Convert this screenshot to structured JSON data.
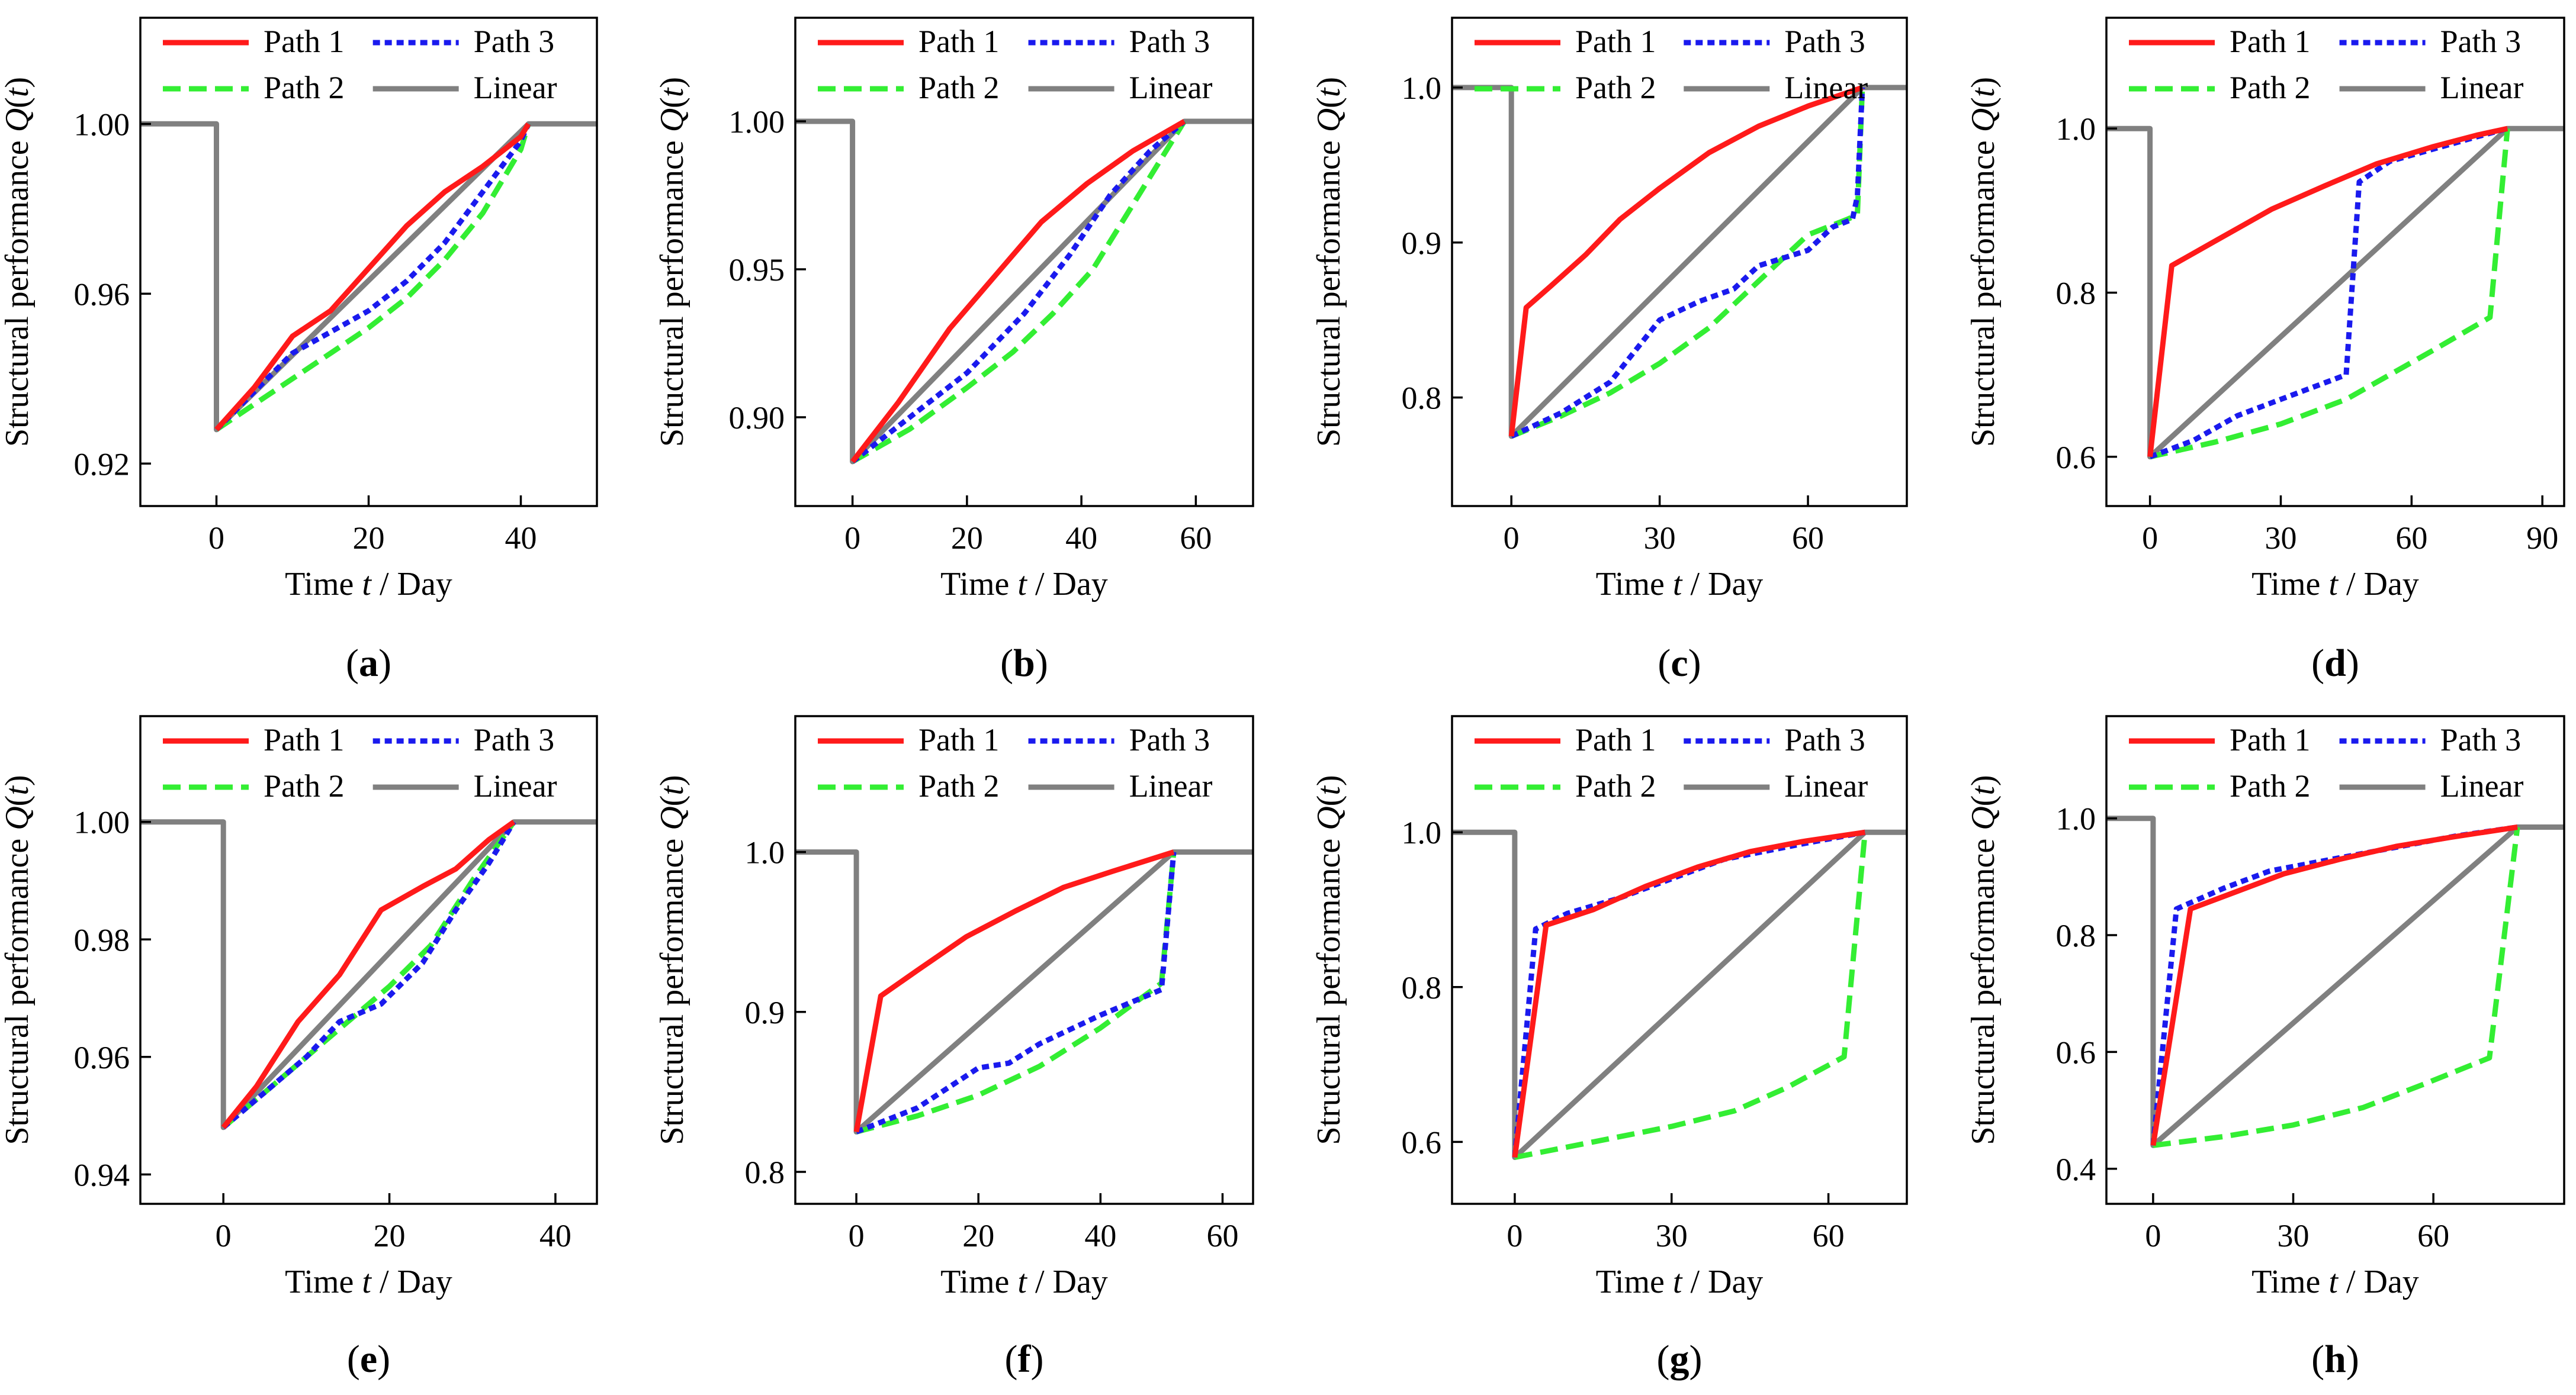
{
  "figure": {
    "panel_labels": [
      "a",
      "b",
      "c",
      "d",
      "e",
      "f",
      "g",
      "h"
    ]
  },
  "colors": {
    "path1": "#ff1a1a",
    "path2": "#33ee33",
    "path3": "#1a1aee",
    "linear": "#808080"
  },
  "chart_data": [
    {
      "type": "line",
      "panel": "a",
      "xlabel": "Time t / Day",
      "ylabel": "Structural performance Q(t)",
      "xlim": [
        -10,
        50
      ],
      "ylim": [
        0.91,
        1.025
      ],
      "xticks": [
        0,
        20,
        40
      ],
      "xticklabels": [
        "0",
        "20",
        "40"
      ],
      "yticks": [
        0.92,
        0.96,
        1.0
      ],
      "yticklabels": [
        "0.92",
        "0.96",
        "1.00"
      ],
      "legend": [
        "Path 1",
        "Path 2",
        "Path 3",
        "Linear"
      ],
      "series": [
        {
          "name": "Path 1",
          "x": [
            0,
            5,
            10,
            15,
            20,
            25,
            30,
            35,
            40,
            41
          ],
          "y": [
            0.928,
            0.938,
            0.95,
            0.956,
            0.966,
            0.976,
            0.984,
            0.99,
            0.997,
            1.0
          ]
        },
        {
          "name": "Path 2",
          "x": [
            0,
            5,
            10,
            15,
            20,
            25,
            30,
            35,
            40,
            41
          ],
          "y": [
            0.928,
            0.934,
            0.94,
            0.946,
            0.952,
            0.959,
            0.968,
            0.979,
            0.994,
            1.0
          ]
        },
        {
          "name": "Path 3",
          "x": [
            0,
            5,
            10,
            15,
            20,
            25,
            30,
            35,
            40,
            41
          ],
          "y": [
            0.928,
            0.937,
            0.946,
            0.951,
            0.956,
            0.963,
            0.972,
            0.984,
            0.996,
            1.0
          ]
        },
        {
          "name": "Linear",
          "x": [
            -10,
            0,
            0,
            41,
            50
          ],
          "y": [
            1.0,
            1.0,
            0.928,
            1.0,
            1.0
          ]
        }
      ]
    },
    {
      "type": "line",
      "panel": "b",
      "xlabel": "Time t / Day",
      "ylabel": "Structural performance Q(t)",
      "xlim": [
        -10,
        70
      ],
      "ylim": [
        0.87,
        1.035
      ],
      "xticks": [
        0,
        20,
        40,
        60
      ],
      "xticklabels": [
        "0",
        "20",
        "40",
        "60"
      ],
      "yticks": [
        0.9,
        0.95,
        1.0
      ],
      "yticklabels": [
        "0.90",
        "0.95",
        "1.00"
      ],
      "legend": [
        "Path 1",
        "Path 2",
        "Path 3",
        "Linear"
      ],
      "series": [
        {
          "name": "Path 1",
          "x": [
            0,
            8,
            17,
            25,
            33,
            41,
            49,
            58
          ],
          "y": [
            0.885,
            0.905,
            0.93,
            0.948,
            0.966,
            0.979,
            0.99,
            1.0
          ]
        },
        {
          "name": "Path 2",
          "x": [
            0,
            10,
            20,
            28,
            35,
            42,
            50,
            58
          ],
          "y": [
            0.885,
            0.896,
            0.91,
            0.922,
            0.935,
            0.95,
            0.975,
            1.0
          ]
        },
        {
          "name": "Path 3",
          "x": [
            0,
            10,
            20,
            30,
            38,
            45,
            52,
            58
          ],
          "y": [
            0.885,
            0.9,
            0.915,
            0.935,
            0.955,
            0.975,
            0.99,
            1.0
          ]
        },
        {
          "name": "Linear",
          "x": [
            -10,
            0,
            0,
            58,
            70
          ],
          "y": [
            1.0,
            1.0,
            0.885,
            1.0,
            1.0
          ]
        }
      ]
    },
    {
      "type": "line",
      "panel": "c",
      "xlabel": "Time t / Day",
      "ylabel": "Structural performance Q(t)",
      "xlim": [
        -12,
        80
      ],
      "ylim": [
        0.73,
        1.045
      ],
      "xticks": [
        0,
        30,
        60
      ],
      "xticklabels": [
        "0",
        "30",
        "60"
      ],
      "yticks": [
        0.8,
        0.9,
        1.0
      ],
      "yticklabels": [
        "0.8",
        "0.9",
        "1.0"
      ],
      "legend": [
        "Path 1",
        "Path 2",
        "Path 3",
        "Linear"
      ],
      "series": [
        {
          "name": "Path 1",
          "x": [
            0,
            3,
            8,
            15,
            22,
            30,
            40,
            50,
            60,
            71
          ],
          "y": [
            0.775,
            0.858,
            0.872,
            0.892,
            0.915,
            0.935,
            0.958,
            0.975,
            0.988,
            1.0
          ]
        },
        {
          "name": "Path 2",
          "x": [
            0,
            10,
            20,
            30,
            40,
            50,
            60,
            68,
            70,
            71
          ],
          "y": [
            0.775,
            0.788,
            0.803,
            0.822,
            0.845,
            0.875,
            0.905,
            0.915,
            0.918,
            1.0
          ]
        },
        {
          "name": "Path 3",
          "x": [
            0,
            10,
            20,
            25,
            30,
            38,
            45,
            50,
            60,
            65,
            69,
            70,
            71
          ],
          "y": [
            0.775,
            0.79,
            0.81,
            0.83,
            0.85,
            0.862,
            0.87,
            0.885,
            0.895,
            0.91,
            0.915,
            0.93,
            1.0
          ]
        },
        {
          "name": "Linear",
          "x": [
            -12,
            0,
            0,
            71,
            80
          ],
          "y": [
            1.0,
            1.0,
            0.775,
            1.0,
            1.0
          ]
        }
      ]
    },
    {
      "type": "line",
      "panel": "d",
      "xlabel": "Time t / Day",
      "ylabel": "Structural performance Q(t)",
      "xlim": [
        -10,
        95
      ],
      "ylim": [
        0.54,
        1.135
      ],
      "xticks": [
        0,
        30,
        60,
        90
      ],
      "xticklabels": [
        "0",
        "30",
        "60",
        "90"
      ],
      "yticks": [
        0.6,
        0.8,
        1.0
      ],
      "yticklabels": [
        "0.6",
        "0.8",
        "1.0"
      ],
      "legend": [
        "Path 1",
        "Path 2",
        "Path 3",
        "Linear"
      ],
      "series": [
        {
          "name": "Path 1",
          "x": [
            0,
            5,
            15,
            28,
            40,
            52,
            65,
            75,
            82
          ],
          "y": [
            0.6,
            0.833,
            0.863,
            0.902,
            0.93,
            0.957,
            0.978,
            0.992,
            1.0
          ]
        },
        {
          "name": "Path 2",
          "x": [
            0,
            15,
            30,
            45,
            55,
            65,
            78,
            82
          ],
          "y": [
            0.6,
            0.618,
            0.64,
            0.67,
            0.7,
            0.73,
            0.77,
            1.0
          ]
        },
        {
          "name": "Path 3",
          "x": [
            0,
            10,
            20,
            30,
            40,
            45,
            48,
            55,
            65,
            75,
            82
          ],
          "y": [
            0.6,
            0.62,
            0.65,
            0.67,
            0.69,
            0.7,
            0.935,
            0.96,
            0.975,
            0.99,
            1.0
          ]
        },
        {
          "name": "Linear",
          "x": [
            -10,
            0,
            0,
            82,
            95
          ],
          "y": [
            1.0,
            1.0,
            0.6,
            1.0,
            1.0
          ]
        }
      ]
    },
    {
      "type": "line",
      "panel": "e",
      "xlabel": "Time t / Day",
      "ylabel": "Structural performance Q(t)",
      "xlim": [
        -10,
        45
      ],
      "ylim": [
        0.935,
        1.018
      ],
      "xticks": [
        0,
        20,
        40
      ],
      "xticklabels": [
        "0",
        "20",
        "40"
      ],
      "yticks": [
        0.94,
        0.96,
        0.98,
        1.0
      ],
      "yticklabels": [
        "0.94",
        "0.96",
        "0.98",
        "1.00"
      ],
      "legend": [
        "Path 1",
        "Path 2",
        "Path 3",
        "Linear"
      ],
      "series": [
        {
          "name": "Path 1",
          "x": [
            0,
            4,
            9,
            14,
            19,
            24,
            28,
            32,
            35
          ],
          "y": [
            0.948,
            0.955,
            0.966,
            0.974,
            0.985,
            0.989,
            0.992,
            0.997,
            1.0
          ]
        },
        {
          "name": "Path 2",
          "x": [
            0,
            5,
            10,
            15,
            20,
            25,
            30,
            35
          ],
          "y": [
            0.948,
            0.954,
            0.96,
            0.966,
            0.972,
            0.979,
            0.99,
            1.0
          ]
        },
        {
          "name": "Path 3",
          "x": [
            0,
            5,
            10,
            14,
            19,
            24,
            28,
            32,
            35
          ],
          "y": [
            0.948,
            0.954,
            0.96,
            0.966,
            0.969,
            0.976,
            0.985,
            0.993,
            1.0
          ]
        },
        {
          "name": "Linear",
          "x": [
            -10,
            0,
            0,
            35,
            45
          ],
          "y": [
            1.0,
            1.0,
            0.948,
            1.0,
            1.0
          ]
        }
      ]
    },
    {
      "type": "line",
      "panel": "f",
      "xlabel": "Time t / Day",
      "ylabel": "Structural performance Q(t)",
      "xlim": [
        -10,
        65
      ],
      "ylim": [
        0.78,
        1.085
      ],
      "xticks": [
        0,
        20,
        40,
        60
      ],
      "xticklabels": [
        "0",
        "20",
        "40",
        "60"
      ],
      "yticks": [
        0.8,
        0.9,
        1.0
      ],
      "yticklabels": [
        "0.8",
        "0.9",
        "1.0"
      ],
      "legend": [
        "Path 1",
        "Path 2",
        "Path 3",
        "Linear"
      ],
      "series": [
        {
          "name": "Path 1",
          "x": [
            0,
            4,
            10,
            18,
            26,
            34,
            42,
            52
          ],
          "y": [
            0.825,
            0.91,
            0.926,
            0.947,
            0.963,
            0.978,
            0.988,
            1.0
          ]
        },
        {
          "name": "Path 2",
          "x": [
            0,
            10,
            20,
            30,
            40,
            50,
            52
          ],
          "y": [
            0.825,
            0.835,
            0.848,
            0.866,
            0.89,
            0.918,
            1.0
          ]
        },
        {
          "name": "Path 3",
          "x": [
            0,
            10,
            20,
            25,
            30,
            40,
            50,
            52
          ],
          "y": [
            0.825,
            0.84,
            0.865,
            0.868,
            0.88,
            0.898,
            0.914,
            1.0
          ]
        },
        {
          "name": "Linear",
          "x": [
            -10,
            0,
            0,
            52,
            65
          ],
          "y": [
            1.0,
            1.0,
            0.825,
            1.0,
            1.0
          ]
        }
      ]
    },
    {
      "type": "line",
      "panel": "g",
      "xlabel": "Time t / Day",
      "ylabel": "Structural performance Q(t)",
      "xlim": [
        -12,
        75
      ],
      "ylim": [
        0.52,
        1.15
      ],
      "xticks": [
        0,
        30,
        60
      ],
      "xticklabels": [
        "0",
        "30",
        "60"
      ],
      "yticks": [
        0.6,
        0.8,
        1.0
      ],
      "yticklabels": [
        "0.6",
        "0.8",
        "1.0"
      ],
      "legend": [
        "Path 1",
        "Path 2",
        "Path 3",
        "Linear"
      ],
      "series": [
        {
          "name": "Path 1",
          "x": [
            0,
            6,
            15,
            25,
            35,
            45,
            55,
            67
          ],
          "y": [
            0.58,
            0.88,
            0.9,
            0.93,
            0.955,
            0.975,
            0.988,
            1.0
          ]
        },
        {
          "name": "Path 2",
          "x": [
            0,
            15,
            30,
            42,
            52,
            63,
            67
          ],
          "y": [
            0.58,
            0.6,
            0.62,
            0.64,
            0.67,
            0.71,
            1.0
          ]
        },
        {
          "name": "Path 3",
          "x": [
            0,
            4,
            10,
            20,
            30,
            40,
            55,
            67
          ],
          "y": [
            0.58,
            0.875,
            0.895,
            0.915,
            0.94,
            0.965,
            0.985,
            1.0
          ]
        },
        {
          "name": "Linear",
          "x": [
            -12,
            0,
            0,
            67,
            75
          ],
          "y": [
            1.0,
            1.0,
            0.58,
            1.0,
            1.0
          ]
        }
      ]
    },
    {
      "type": "line",
      "panel": "h",
      "xlabel": "Time t / Day",
      "ylabel": "Structural performance Q(t)",
      "xlim": [
        -10,
        88
      ],
      "ylim": [
        0.34,
        1.175
      ],
      "xticks": [
        0,
        30,
        60
      ],
      "xticklabels": [
        "0",
        "30",
        "60"
      ],
      "yticks": [
        0.4,
        0.6,
        0.8,
        1.0
      ],
      "yticklabels": [
        "0.4",
        "0.6",
        "0.8",
        "1.0"
      ],
      "legend": [
        "Path 1",
        "Path 2",
        "Path 3",
        "Linear"
      ],
      "series": [
        {
          "name": "Path 1",
          "x": [
            0,
            8,
            18,
            28,
            40,
            52,
            64,
            78
          ],
          "y": [
            0.44,
            0.845,
            0.875,
            0.905,
            0.93,
            0.952,
            0.968,
            0.985
          ]
        },
        {
          "name": "Path 2",
          "x": [
            0,
            15,
            30,
            45,
            58,
            72,
            78
          ],
          "y": [
            0.44,
            0.455,
            0.475,
            0.505,
            0.545,
            0.59,
            0.985
          ]
        },
        {
          "name": "Path 3",
          "x": [
            0,
            5,
            15,
            25,
            35,
            45,
            55,
            65,
            78
          ],
          "y": [
            0.44,
            0.845,
            0.88,
            0.91,
            0.925,
            0.94,
            0.955,
            0.97,
            0.985
          ]
        },
        {
          "name": "Linear",
          "x": [
            -10,
            0,
            0,
            78,
            88
          ],
          "y": [
            1.0,
            1.0,
            0.44,
            0.985,
            0.985
          ]
        }
      ]
    }
  ]
}
